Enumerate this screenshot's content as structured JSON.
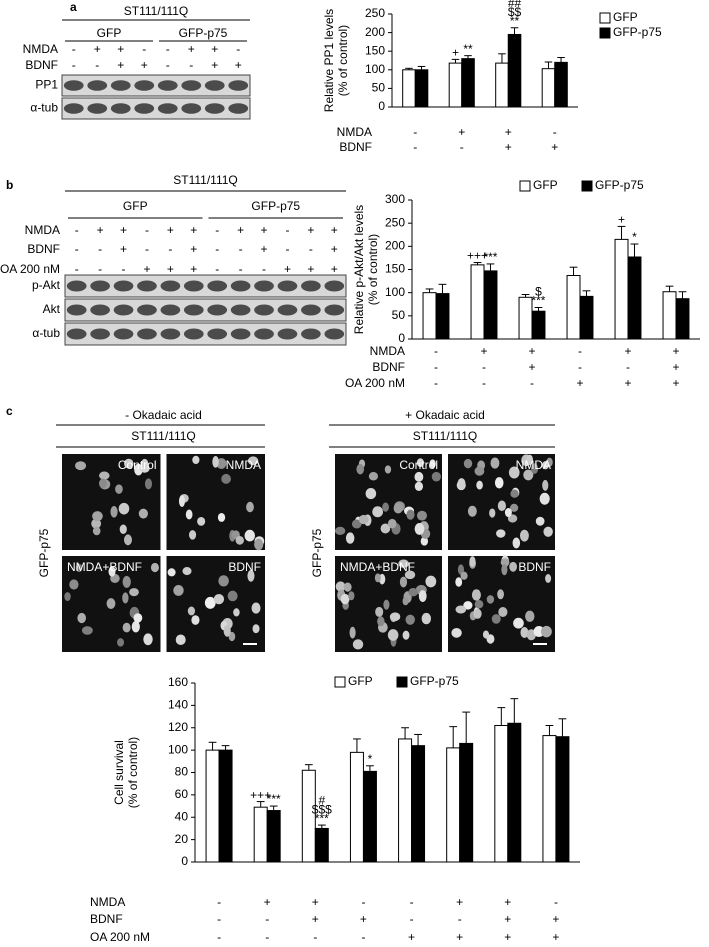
{
  "chart_data": [
    {
      "type": "bar",
      "ylabel": [
        "Relative PP1 levels",
        "(% of control)"
      ],
      "ylim": [
        0,
        250
      ],
      "yticks": [
        0,
        50,
        100,
        150,
        200,
        250
      ],
      "series": [
        {
          "name": "GFP",
          "color": "#ffffff",
          "values": [
            100,
            118,
            118,
            103
          ],
          "errors": [
            4,
            10,
            25,
            18
          ],
          "annotations": [
            null,
            [
              "+"
            ],
            null,
            null
          ]
        },
        {
          "name": "GFP-p75",
          "color": "#000000",
          "values": [
            100,
            130,
            195,
            120
          ],
          "errors": [
            9,
            8,
            18,
            13
          ],
          "annotations": [
            null,
            [
              "**"
            ],
            [
              "##",
              "$$",
              "**"
            ],
            null
          ]
        }
      ],
      "conditions": [
        {
          "label": "NMDA",
          "signs": [
            "-",
            "+",
            "+",
            "-"
          ]
        },
        {
          "label": "BDNF",
          "signs": [
            "-",
            "-",
            "+",
            "+"
          ]
        }
      ],
      "legend": "right"
    },
    {
      "type": "bar",
      "ylabel": [
        "Relative p-Akt/Akt levels",
        "(% of control)"
      ],
      "ylim": [
        0,
        300
      ],
      "yticks": [
        0,
        50,
        100,
        150,
        200,
        250,
        300
      ],
      "series": [
        {
          "name": "GFP",
          "color": "#ffffff",
          "values": [
            100,
            160,
            90,
            137,
            215,
            102
          ],
          "errors": [
            8,
            5,
            6,
            18,
            28,
            12
          ],
          "annotations": [
            null,
            [
              "+++"
            ],
            null,
            null,
            [
              "+"
            ],
            null
          ]
        },
        {
          "name": "GFP-p75",
          "color": "#000000",
          "values": [
            98,
            147,
            60,
            92,
            177,
            87
          ],
          "errors": [
            20,
            15,
            8,
            12,
            28,
            15
          ],
          "annotations": [
            null,
            [
              "***"
            ],
            [
              "$",
              "***"
            ],
            null,
            [
              "*"
            ],
            null
          ]
        }
      ],
      "conditions": [
        {
          "label": "NMDA",
          "signs": [
            "-",
            "+",
            "+",
            "-",
            "+",
            "+"
          ]
        },
        {
          "label": "BDNF",
          "signs": [
            "-",
            "-",
            "+",
            "-",
            "-",
            "+"
          ]
        },
        {
          "label": "OA 200 nM",
          "signs": [
            "-",
            "-",
            "-",
            "+",
            "+",
            "+"
          ]
        }
      ],
      "legend": "top"
    },
    {
      "type": "bar",
      "ylabel": [
        "Cell survival",
        "(% of control)"
      ],
      "ylim": [
        0,
        160
      ],
      "yticks": [
        0,
        20,
        40,
        60,
        80,
        100,
        120,
        140,
        160
      ],
      "series": [
        {
          "name": "GFP",
          "color": "#ffffff",
          "values": [
            100,
            49,
            82,
            98,
            110,
            102,
            122,
            113
          ],
          "errors": [
            7,
            5,
            5,
            12,
            10,
            19,
            16,
            9
          ],
          "annotations": [
            null,
            [
              "+++"
            ],
            null,
            null,
            null,
            null,
            null,
            null
          ]
        },
        {
          "name": "GFP-p75",
          "color": "#000000",
          "values": [
            100,
            46,
            30,
            81,
            104,
            106,
            124,
            112
          ],
          "errors": [
            4,
            4,
            3,
            5,
            10,
            28,
            22,
            16
          ],
          "annotations": [
            null,
            [
              "***"
            ],
            [
              "#",
              "$$$",
              "***"
            ],
            [
              "*"
            ],
            null,
            null,
            null,
            null
          ]
        }
      ],
      "conditions": [
        {
          "label": "NMDA",
          "signs": [
            "-",
            "+",
            "+",
            "-",
            "-",
            "+",
            "+",
            "-"
          ]
        },
        {
          "label": "BDNF",
          "signs": [
            "-",
            "-",
            "+",
            "+",
            "-",
            "-",
            "+",
            "+"
          ]
        },
        {
          "label": "OA 200 nM",
          "signs": [
            "-",
            "-",
            "-",
            "-",
            "+",
            "+",
            "+",
            "+"
          ]
        }
      ],
      "legend": "top"
    }
  ],
  "blots": [
    {
      "panel": "a",
      "title": "ST111/111Q",
      "groups": [
        "GFP",
        "GFP-p75"
      ],
      "conditions": [
        {
          "label": "NMDA",
          "signs": [
            "-",
            "+",
            "+",
            "-",
            "-",
            "+",
            "+",
            "-"
          ]
        },
        {
          "label": "BDNF",
          "signs": [
            "-",
            "-",
            "+",
            "+",
            "-",
            "-",
            "+",
            "+"
          ]
        }
      ],
      "bands": [
        "PP1",
        "α-tub"
      ]
    },
    {
      "panel": "b",
      "title": "ST111/111Q",
      "groups": [
        "GFP",
        "GFP-p75"
      ],
      "conditions": [
        {
          "label": "NMDA",
          "signs": [
            "-",
            "+",
            "+",
            "-",
            "+",
            "+",
            "-",
            "+",
            "+",
            "-",
            "+",
            "+"
          ]
        },
        {
          "label": "BDNF",
          "signs": [
            "-",
            "-",
            "+",
            "-",
            "-",
            "+",
            "-",
            "-",
            "+",
            "-",
            "-",
            "+"
          ]
        },
        {
          "label": "OA 200 nM",
          "signs": [
            "-",
            "-",
            "-",
            "+",
            "+",
            "+",
            "-",
            "-",
            "-",
            "+",
            "+",
            "+"
          ]
        }
      ],
      "bands": [
        "p-Akt",
        "Akt",
        "α-tub"
      ]
    }
  ],
  "micrographs": {
    "panel": "c",
    "sets": [
      {
        "heading": "- Okadaic acid",
        "title": "ST111/111Q",
        "side_label": "GFP-p75",
        "labels": [
          "Control",
          "NMDA",
          "NMDA+BDNF",
          "BDNF"
        ]
      },
      {
        "heading": "+ Okadaic acid",
        "title": "ST111/111Q",
        "side_label": "GFP-p75",
        "labels": [
          "Control",
          "NMDA",
          "NMDA+BDNF",
          "BDNF"
        ]
      }
    ]
  }
}
